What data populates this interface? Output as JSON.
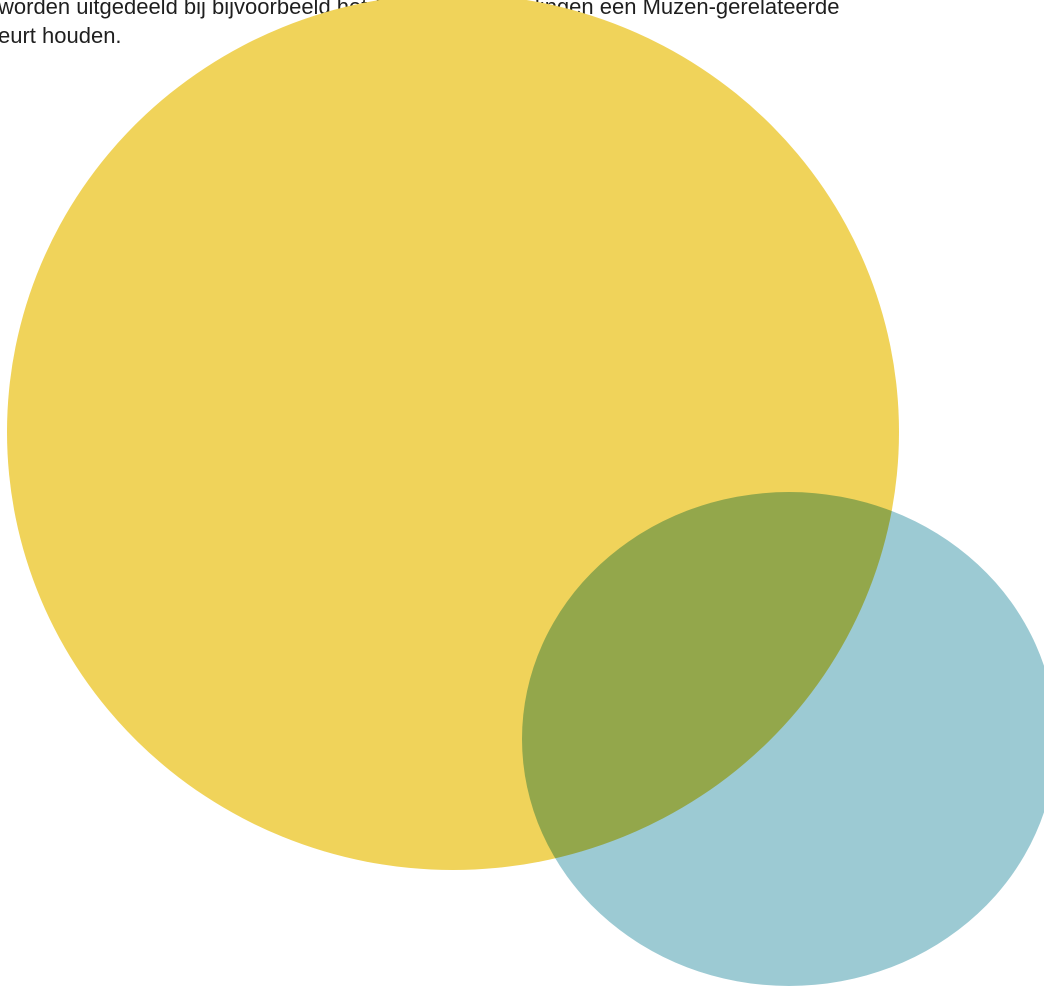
{
  "document": {
    "text_lines": [
      "worden uitgedeeld bij bijvoorbeeld het Open en als leerlingen een Muzen-gerelateerde",
      "eurt houden."
    ]
  },
  "shapes": {
    "yellow_circle_color": "#f0d35a",
    "blue_circle_color": "#9ccad3"
  }
}
